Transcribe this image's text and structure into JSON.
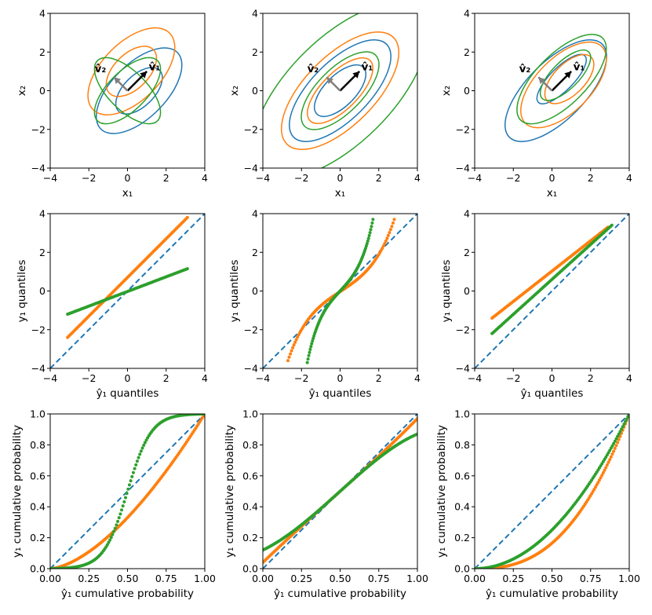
{
  "colors": {
    "c0": "#1f77b4",
    "c1": "#ff7f0e",
    "c2": "#2ca02c",
    "vec_v1": "#000000",
    "vec_v2": "#808080"
  },
  "chart_data": [
    {
      "type": "contour",
      "panel": "row1-col1",
      "xlabel": "x₁",
      "ylabel": "x₂",
      "xlim": [
        -4,
        4
      ],
      "ylim": [
        -4,
        4
      ],
      "xticks": [
        "−4",
        "−2",
        "0",
        "2",
        "4"
      ],
      "yticks": [
        "−4",
        "−2",
        "0",
        "2",
        "4"
      ],
      "vector_labels": [
        "v̂₁",
        "v̂₂"
      ],
      "vectors": [
        {
          "name": "v1",
          "dx": 1.0,
          "dy": 1.0
        },
        {
          "name": "v2",
          "dx": -0.7,
          "dy": 0.7
        }
      ],
      "series": [
        {
          "name": "blue",
          "color": "c0",
          "ellipses": [
            {
              "cx": 0.6,
              "cy": 0.0,
              "a": 1.5,
              "b": 0.8,
              "angle": 45
            },
            {
              "cx": 0.6,
              "cy": 0.0,
              "a": 2.8,
              "b": 1.4,
              "angle": 45
            }
          ]
        },
        {
          "name": "orange",
          "color": "c1",
          "ellipses": [
            {
              "cx": 0.2,
              "cy": 1.0,
              "a": 1.6,
              "b": 0.9,
              "angle": 45
            },
            {
              "cx": 0.2,
              "cy": 1.0,
              "a": 2.8,
              "b": 1.5,
              "angle": 45
            }
          ]
        },
        {
          "name": "green",
          "color": "c2",
          "ellipses": [
            {
              "cx": 0.0,
              "cy": 0.0,
              "a": 2.2,
              "b": 1.0,
              "angle": 45
            },
            {
              "cx": 0.0,
              "cy": 0.0,
              "a": 2.2,
              "b": 1.0,
              "angle": -45
            }
          ]
        }
      ]
    },
    {
      "type": "contour",
      "panel": "row1-col2",
      "xlabel": "x₁",
      "ylabel": "x₂",
      "xlim": [
        -4,
        4
      ],
      "ylim": [
        -4,
        4
      ],
      "xticks": [
        "−4",
        "−2",
        "0",
        "2",
        "4"
      ],
      "yticks": [
        "−4",
        "−2",
        "0",
        "2",
        "4"
      ],
      "vector_labels": [
        "v̂₁",
        "v̂₂"
      ],
      "vectors": [
        {
          "name": "v1",
          "dx": 1.0,
          "dy": 1.0
        },
        {
          "name": "v2",
          "dx": -0.7,
          "dy": 0.7
        }
      ],
      "series": [
        {
          "name": "blue",
          "color": "c0",
          "ellipses": [
            {
              "cx": 0,
              "cy": 0,
              "a": 1.7,
              "b": 0.8,
              "angle": 45
            },
            {
              "cx": 0,
              "cy": 0,
              "a": 3.4,
              "b": 1.5,
              "angle": 45
            }
          ]
        },
        {
          "name": "orange",
          "color": "c1",
          "ellipses": [
            {
              "cx": 0,
              "cy": 0,
              "a": 2.2,
              "b": 0.95,
              "angle": 45
            },
            {
              "cx": 0,
              "cy": 0,
              "a": 3.9,
              "b": 1.8,
              "angle": 45
            }
          ]
        },
        {
          "name": "green",
          "color": "c2",
          "ellipses": [
            {
              "cx": 0,
              "cy": 0,
              "a": 2.6,
              "b": 1.15,
              "angle": 45
            },
            {
              "cx": 0,
              "cy": 0,
              "a": 5.8,
              "b": 2.7,
              "angle": 45
            }
          ]
        }
      ]
    },
    {
      "type": "contour",
      "panel": "row1-col3",
      "xlabel": "x₁",
      "ylabel": "x₂",
      "xlim": [
        -4,
        4
      ],
      "ylim": [
        -4,
        4
      ],
      "xticks": [
        "−4",
        "−2",
        "0",
        "2",
        "4"
      ],
      "yticks": [
        "−4",
        "−2",
        "0",
        "2",
        "4"
      ],
      "vector_labels": [
        "v̂₁",
        "v̂₂"
      ],
      "vectors": [
        {
          "name": "v1",
          "dx": 1.0,
          "dy": 1.0
        },
        {
          "name": "v2",
          "dx": -0.7,
          "dy": 0.7
        }
      ],
      "series": [
        {
          "name": "blue",
          "color": "c0",
          "ellipses": [
            {
              "cx": 0.5,
              "cy": 0.6,
              "a": 1.7,
              "b": 0.6,
              "angle": 45
            },
            {
              "cx": 0.2,
              "cy": 0.0,
              "a": 3.4,
              "b": 1.5,
              "angle": 45
            }
          ]
        },
        {
          "name": "orange",
          "color": "c1",
          "ellipses": [
            {
              "cx": 0.9,
              "cy": 0.6,
              "a": 1.6,
              "b": 0.8,
              "angle": 45
            },
            {
              "cx": 0.6,
              "cy": 0.3,
              "a": 2.8,
              "b": 1.4,
              "angle": 45
            }
          ]
        },
        {
          "name": "green",
          "color": "c2",
          "ellipses": [
            {
              "cx": 0.7,
              "cy": 0.8,
              "a": 1.7,
              "b": 0.7,
              "angle": 45
            },
            {
              "cx": 0.5,
              "cy": 0.6,
              "a": 3.0,
              "b": 1.3,
              "angle": 45
            }
          ]
        }
      ]
    },
    {
      "type": "scatter",
      "panel": "row2-col1",
      "xlabel": "ŷ₁ quantiles",
      "ylabel": "y₁ quantiles",
      "xlim": [
        -4,
        4
      ],
      "ylim": [
        -4,
        4
      ],
      "xticks": [
        "−4",
        "−2",
        "0",
        "2",
        "4"
      ],
      "yticks": [
        "−4",
        "−2",
        "0",
        "2",
        "4"
      ],
      "reference_line": "dashed y = x",
      "series": [
        {
          "name": "orange",
          "color": "c1",
          "shape": "linear",
          "x_range": [
            -3.1,
            3.1
          ],
          "y_range": [
            -2.4,
            3.8
          ],
          "points": 90
        },
        {
          "name": "green",
          "color": "c2",
          "shape": "linear",
          "x_range": [
            -3.1,
            3.1
          ],
          "y_range": [
            -1.2,
            1.15
          ],
          "points": 90
        }
      ]
    },
    {
      "type": "scatter",
      "panel": "row2-col2",
      "xlabel": "ŷ₁ quantiles",
      "ylabel": "y₁ quantiles",
      "xlim": [
        -4,
        4
      ],
      "ylim": [
        -4,
        4
      ],
      "xticks": [
        "−4",
        "−2",
        "0",
        "2",
        "4"
      ],
      "yticks": [
        "−4",
        "−2",
        "0",
        "2",
        "4"
      ],
      "reference_line": "dashed y = x",
      "series": [
        {
          "name": "orange",
          "color": "c1",
          "shape": "sinh",
          "x_range": [
            -2.7,
            2.8
          ],
          "y_range": [
            -3.6,
            3.7
          ],
          "points": 90
        },
        {
          "name": "green",
          "color": "c2",
          "shape": "sinh",
          "x_range": [
            -1.7,
            1.7
          ],
          "y_range": [
            -3.7,
            3.7
          ],
          "points": 90
        }
      ]
    },
    {
      "type": "scatter",
      "panel": "row2-col3",
      "xlabel": "ŷ₁ quantiles",
      "ylabel": "y₁ quantiles",
      "xlim": [
        -4,
        4
      ],
      "ylim": [
        -4,
        4
      ],
      "xticks": [
        "−4",
        "−2",
        "0",
        "2",
        "4"
      ],
      "yticks": [
        "−4",
        "−2",
        "0",
        "2",
        "4"
      ],
      "reference_line": "dashed y = x",
      "series": [
        {
          "name": "orange",
          "color": "c1",
          "shape": "linear",
          "x_range": [
            -3.1,
            2.9
          ],
          "y_range": [
            -1.4,
            3.3
          ],
          "points": 90
        },
        {
          "name": "green",
          "color": "c2",
          "shape": "linear",
          "x_range": [
            -3.1,
            3.1
          ],
          "y_range": [
            -2.2,
            3.4
          ],
          "points": 90
        }
      ]
    },
    {
      "type": "scatter",
      "panel": "row3-col1",
      "xlabel": "ŷ₁ cumulative probability",
      "ylabel": "y₁ cumulative probability",
      "xlim": [
        0,
        1
      ],
      "ylim": [
        0,
        1
      ],
      "xticks": [
        "0.00",
        "0.25",
        "0.50",
        "0.75",
        "1.00"
      ],
      "yticks": [
        "0.0",
        "0.2",
        "0.4",
        "0.6",
        "0.8",
        "1.0"
      ],
      "reference_line": "dashed y = x",
      "series": [
        {
          "name": "orange",
          "color": "c1",
          "shape": "power",
          "exponent": 1.6,
          "points": 120
        },
        {
          "name": "green",
          "color": "c2",
          "shape": "sigmoid",
          "center": 0.5,
          "steepness": 13,
          "points": 120
        }
      ]
    },
    {
      "type": "scatter",
      "panel": "row3-col2",
      "xlabel": "ŷ₁ cumulative probability",
      "ylabel": "y₁ cumulative probability",
      "xlim": [
        0,
        1
      ],
      "ylim": [
        0,
        1
      ],
      "xticks": [
        "0.00",
        "0.25",
        "0.50",
        "0.75",
        "1.00"
      ],
      "yticks": [
        "0.0",
        "0.2",
        "0.4",
        "0.6",
        "0.8",
        "1.0"
      ],
      "reference_line": "dashed y = x",
      "series": [
        {
          "name": "orange",
          "color": "c1",
          "shape": "cubic",
          "y_at_0": 0.04,
          "y_at_1": 0.97,
          "points": 120
        },
        {
          "name": "green",
          "color": "c2",
          "shape": "cubic",
          "y_at_0": 0.12,
          "y_at_1": 0.87,
          "points": 120
        }
      ]
    },
    {
      "type": "scatter",
      "panel": "row3-col3",
      "xlabel": "ŷ₁ cumulative probability",
      "ylabel": "y₁ cumulative probability",
      "xlim": [
        0,
        1
      ],
      "ylim": [
        0,
        1
      ],
      "xticks": [
        "0.00",
        "0.25",
        "0.50",
        "0.75",
        "1.00"
      ],
      "yticks": [
        "0.0",
        "0.2",
        "0.4",
        "0.6",
        "0.8",
        "1.0"
      ],
      "reference_line": "dashed y = x",
      "series": [
        {
          "name": "orange",
          "color": "c1",
          "shape": "power",
          "exponent": 2.6,
          "points": 120
        },
        {
          "name": "green",
          "color": "c2",
          "shape": "power",
          "exponent": 2.0,
          "points": 120
        }
      ]
    }
  ]
}
